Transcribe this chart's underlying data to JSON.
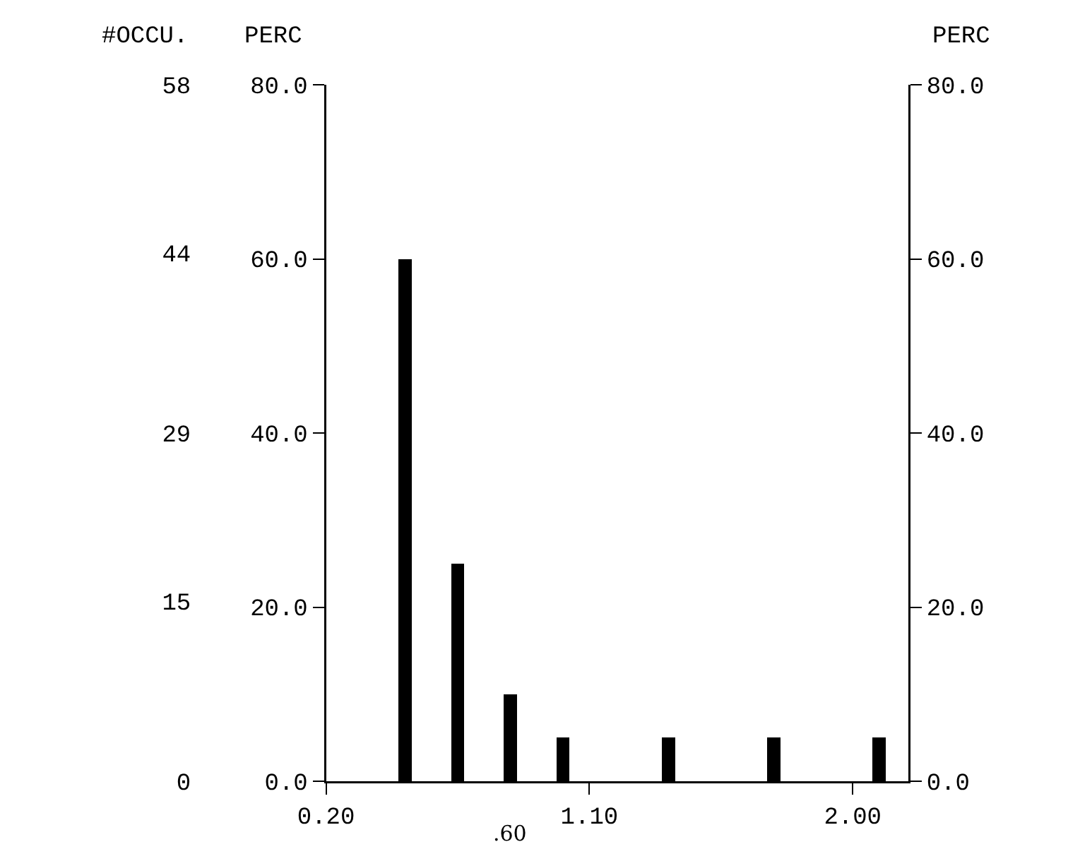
{
  "chart_data": {
    "type": "bar",
    "ylabel": "PERC",
    "y2label": "#OCCU.",
    "y3label": "PERC",
    "x": [
      0.47,
      0.65,
      0.83,
      1.01,
      1.37,
      1.73,
      2.09
    ],
    "series": [
      {
        "color": "#000000",
        "values": [
          60,
          25,
          10,
          5,
          5,
          5,
          5
        ]
      }
    ],
    "xlim": [
      0.2,
      2.19
    ],
    "xticks": [
      {
        "value": 0.2,
        "label": "0.20"
      },
      {
        "value": 1.1,
        "label": "1.10"
      },
      {
        "value": 2.0,
        "label": "2.00"
      }
    ],
    "annotations": [
      ".60"
    ],
    "ylim": [
      0,
      80
    ],
    "yticks": [
      {
        "value": 0,
        "label": "0.0"
      },
      {
        "value": 20,
        "label": "20.0"
      },
      {
        "value": 40,
        "label": "40.0"
      },
      {
        "value": 60,
        "label": "60.0"
      },
      {
        "value": 80,
        "label": "80.0"
      }
    ],
    "y2lim": [
      0,
      58
    ],
    "y2ticks": [
      0,
      15,
      29,
      44,
      58
    ],
    "y3lim": [
      0,
      80
    ],
    "y3ticks": [
      {
        "value": 0,
        "label": "0.0"
      },
      {
        "value": 20,
        "label": "20.0"
      },
      {
        "value": 40,
        "label": "40.0"
      },
      {
        "value": 60,
        "label": "60.0"
      },
      {
        "value": 80,
        "label": "80.0"
      }
    ],
    "grid": false
  }
}
